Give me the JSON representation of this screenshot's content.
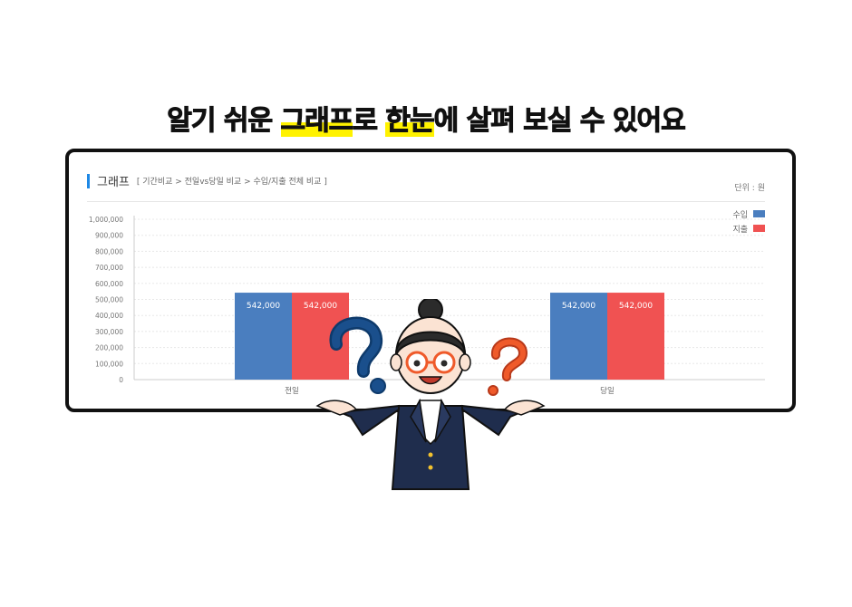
{
  "headline": {
    "part1": "알기 쉬운 ",
    "highlight1": "그래프",
    "part2": "로 ",
    "highlight2": "한눈",
    "part3": "에  살펴 보실 수 있어요"
  },
  "panel": {
    "title": "그래프",
    "breadcrumb": "[ 기간비교 > 전일vs당일 비교 > 수입/지출 전체 비교 ]",
    "unit": "단위 : 원"
  },
  "colors": {
    "income": "#4a7ebf",
    "expense": "#f05252",
    "accent": "#1e88e5",
    "highlight": "#fff200"
  },
  "chart_data": {
    "type": "bar",
    "categories": [
      "전일",
      "당일"
    ],
    "series": [
      {
        "name": "수입",
        "values": [
          542000,
          542000
        ],
        "data_labels": [
          "542,000",
          "542,000"
        ]
      },
      {
        "name": "지출",
        "values": [
          542000,
          542000
        ],
        "data_labels": [
          "542,000",
          "542,000"
        ]
      }
    ],
    "ylim": [
      0,
      1000000
    ],
    "yticks": [
      "0",
      "100,000",
      "200,000",
      "300,000",
      "400,000",
      "500,000",
      "600,000",
      "700,000",
      "800,000",
      "900,000",
      "1,000,000"
    ],
    "grid": true,
    "legend": "top-right",
    "unit": "단위 : 원"
  }
}
